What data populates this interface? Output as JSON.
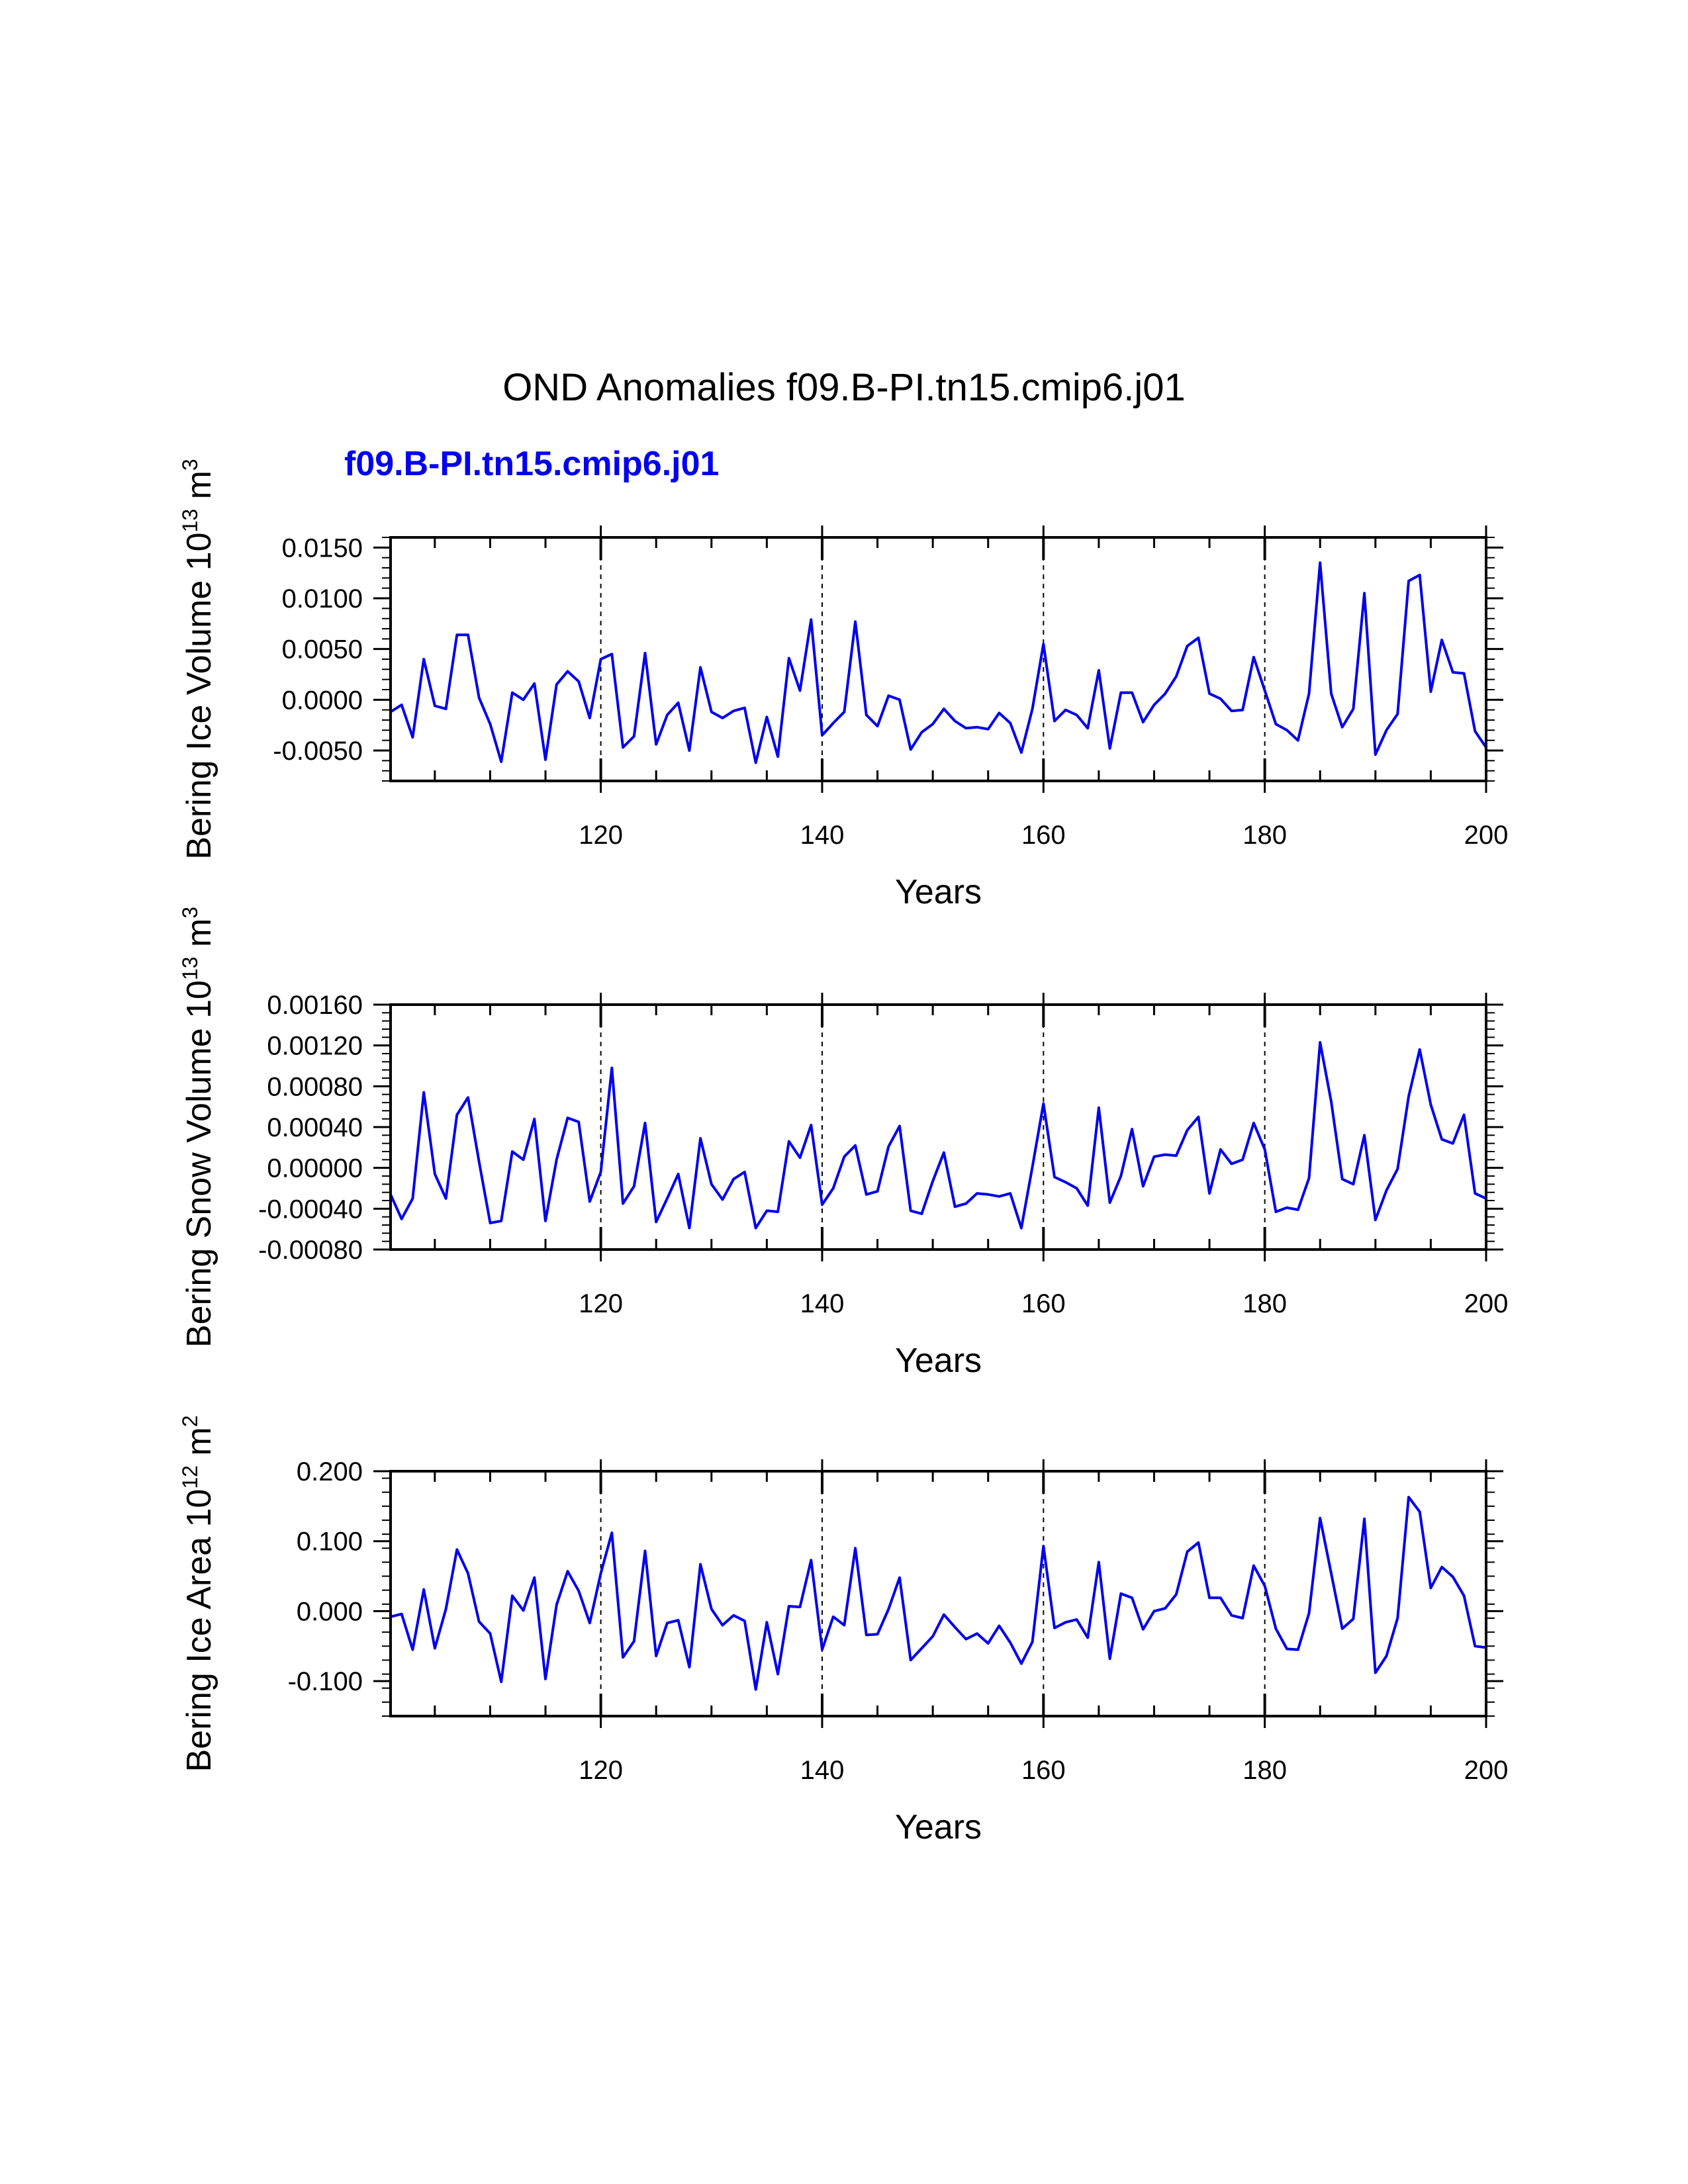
{
  "title": "OND Anomalies f09.B-PI.tn15.cmip6.j01",
  "subtitle": "f09.B-PI.tn15.cmip6.j01",
  "colors": {
    "line": "#0000ee",
    "subtitle": "#0000ee",
    "axis": "#000000"
  },
  "chart_data": [
    {
      "type": "line",
      "title": "",
      "xlabel": "Years",
      "ylabel": {
        "text": "Bering Ice Volume 10",
        "exp": "13",
        "unit": " m",
        "unit_exp": "3"
      },
      "xlim": [
        101,
        200
      ],
      "ylim": [
        -0.008,
        0.016
      ],
      "xticks": [
        120,
        140,
        160,
        180,
        200
      ],
      "yticks": [
        -0.005,
        0.0,
        0.005,
        0.01,
        0.015
      ],
      "ytick_labels": [
        "-0.0050",
        "0.0000",
        "0.0050",
        "0.0100",
        "0.0150"
      ],
      "grid": "dashed vertical lines at 120, 140, 160, 180",
      "series": [
        {
          "name": "f09.B-PI.tn15.cmip6.j01",
          "x_start": 101,
          "values": [
            -0.0012,
            -0.0005,
            -0.0037,
            0.004,
            -0.0006,
            -0.0009,
            0.0064,
            0.0064,
            0.0002,
            -0.0024,
            -0.0061,
            0.0007,
            0.0,
            0.0016,
            -0.0059,
            0.0015,
            0.0028,
            0.0018,
            -0.0018,
            0.004,
            0.0045,
            -0.0047,
            -0.0036,
            0.0046,
            -0.0044,
            -0.0015,
            -0.0003,
            -0.005,
            0.0032,
            -0.0012,
            -0.0018,
            -0.0011,
            -0.0008,
            -0.0062,
            -0.0017,
            -0.0056,
            0.0041,
            0.0009,
            0.0079,
            -0.0035,
            -0.0023,
            -0.0012,
            0.0077,
            -0.0015,
            -0.0026,
            0.0004,
            0.0,
            -0.0049,
            -0.0032,
            -0.0024,
            -0.0009,
            -0.0021,
            -0.0028,
            -0.0027,
            -0.0029,
            -0.0013,
            -0.0023,
            -0.0052,
            -0.0009,
            0.0055,
            -0.0021,
            -0.001,
            -0.0015,
            -0.0028,
            0.0029,
            -0.0048,
            0.0007,
            0.0007,
            -0.0022,
            -0.0005,
            0.0006,
            0.0023,
            0.0053,
            0.0061,
            0.0006,
            0.0001,
            -0.0011,
            -0.001,
            0.0042,
            0.0009,
            -0.0024,
            -0.003,
            -0.004,
            0.0006,
            0.0135,
            0.0006,
            -0.0027,
            -0.0009,
            0.0105,
            -0.0054,
            -0.003,
            -0.0014,
            0.0117,
            0.0123,
            0.0008,
            0.0059,
            0.0027,
            0.0026,
            -0.0031,
            -0.0047
          ]
        }
      ]
    },
    {
      "type": "line",
      "title": "",
      "xlabel": "Years",
      "ylabel": {
        "text": "Bering Snow Volume 10",
        "exp": "13",
        "unit": " m",
        "unit_exp": "3"
      },
      "xlim": [
        101,
        200
      ],
      "ylim": [
        -0.0008,
        0.0016
      ],
      "xticks": [
        120,
        140,
        160,
        180,
        200
      ],
      "yticks": [
        -0.0008,
        -0.0004,
        0.0,
        0.0004,
        0.0008,
        0.0012,
        0.0016
      ],
      "ytick_labels": [
        "-0.00080",
        "-0.00040",
        "0.00000",
        "0.00040",
        "0.00080",
        "0.00120",
        "0.00160"
      ],
      "grid": "dashed vertical lines at 120, 140, 160, 180",
      "series": [
        {
          "name": "f09.B-PI.tn15.cmip6.j01",
          "x_start": 101,
          "values": [
            -0.00026,
            -0.0005,
            -0.0003,
            0.00074,
            -6e-05,
            -0.0003,
            0.00052,
            0.00069,
            6e-05,
            -0.00054,
            -0.00052,
            0.00016,
            8e-05,
            0.00048,
            -0.00052,
            8e-05,
            0.00049,
            0.00045,
            -0.00033,
            -4e-05,
            0.00098,
            -0.00035,
            -0.00018,
            0.00044,
            -0.00053,
            -0.0003,
            -6e-05,
            -0.00059,
            0.00029,
            -0.00016,
            -0.00031,
            -0.00011,
            -4e-05,
            -0.00059,
            -0.00042,
            -0.00043,
            0.00026,
            0.0001,
            0.00042,
            -0.00036,
            -0.0002,
            0.00011,
            0.00022,
            -0.00026,
            -0.00023,
            0.00021,
            0.00041,
            -0.00042,
            -0.00045,
            -0.00013,
            0.00015,
            -0.00038,
            -0.00035,
            -0.00025,
            -0.00026,
            -0.00028,
            -0.00025,
            -0.00059,
            1e-05,
            0.00063,
            -9e-05,
            -0.00014,
            -0.0002,
            -0.00037,
            0.00059,
            -0.00034,
            -8e-05,
            0.00038,
            -0.00018,
            0.00011,
            0.00013,
            0.00012,
            0.00037,
            0.0005,
            -0.00025,
            0.00018,
            4e-05,
            8e-05,
            0.00044,
            0.00018,
            -0.00043,
            -0.00039,
            -0.00041,
            -0.0001,
            0.00123,
            0.00065,
            -0.00011,
            -0.00016,
            0.00032,
            -0.00051,
            -0.00022,
            -1e-05,
            0.0007,
            0.00116,
            0.00062,
            0.00028,
            0.00024,
            0.00052,
            -0.00025,
            -0.0003
          ]
        }
      ]
    },
    {
      "type": "line",
      "title": "",
      "xlabel": "Years",
      "ylabel": {
        "text": "Bering Ice Area 10",
        "exp": "12",
        "unit": " m",
        "unit_exp": "2"
      },
      "xlim": [
        101,
        200
      ],
      "ylim": [
        -0.15,
        0.2
      ],
      "xticks": [
        120,
        140,
        160,
        180,
        200
      ],
      "yticks": [
        -0.1,
        0.0,
        0.1,
        0.2
      ],
      "ytick_labels": [
        "-0.100",
        "0.000",
        "0.100",
        "0.200"
      ],
      "grid": "dashed vertical lines at 120, 140, 160, 180",
      "series": [
        {
          "name": "f09.B-PI.tn15.cmip6.j01",
          "x_start": 101,
          "values": [
            -0.008,
            -0.004,
            -0.055,
            0.031,
            -0.053,
            0.003,
            0.088,
            0.054,
            -0.015,
            -0.032,
            -0.101,
            0.022,
            0.001,
            0.048,
            -0.097,
            0.009,
            0.057,
            0.029,
            -0.017,
            0.054,
            0.112,
            -0.066,
            -0.043,
            0.086,
            -0.064,
            -0.017,
            -0.013,
            -0.08,
            0.067,
            0.003,
            -0.02,
            -0.006,
            -0.014,
            -0.112,
            -0.016,
            -0.09,
            0.007,
            0.006,
            0.073,
            -0.055,
            -0.008,
            -0.02,
            0.09,
            -0.034,
            -0.033,
            0.003,
            0.048,
            -0.07,
            -0.053,
            -0.036,
            -0.005,
            -0.023,
            -0.04,
            -0.032,
            -0.046,
            -0.021,
            -0.045,
            -0.075,
            -0.044,
            0.093,
            -0.024,
            -0.016,
            -0.012,
            -0.038,
            0.07,
            -0.068,
            0.025,
            0.019,
            -0.026,
            0.0,
            0.004,
            0.024,
            0.085,
            0.098,
            0.019,
            0.019,
            -0.006,
            -0.01,
            0.065,
            0.036,
            -0.025,
            -0.054,
            -0.055,
            -0.003,
            0.133,
            0.054,
            -0.025,
            -0.011,
            0.132,
            -0.088,
            -0.064,
            -0.01,
            0.163,
            0.142,
            0.033,
            0.063,
            0.049,
            0.022,
            -0.05,
            -0.052
          ]
        }
      ]
    }
  ]
}
